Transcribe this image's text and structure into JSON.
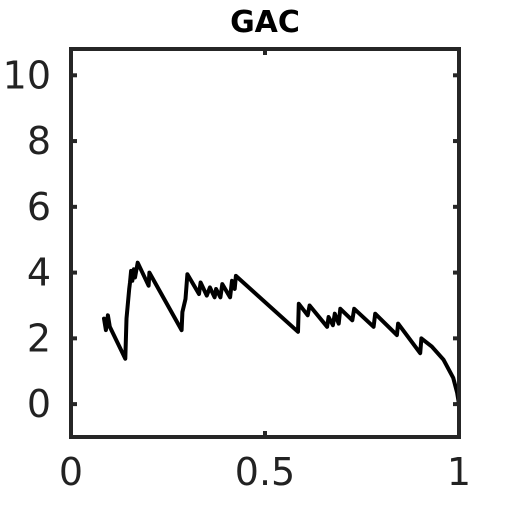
{
  "chart_data": {
    "type": "line",
    "title": "GAC",
    "xlabel": "",
    "ylabel": "",
    "xlim": [
      0,
      1
    ],
    "ylim": [
      -1,
      10.8
    ],
    "x_ticks": [
      0,
      0.5,
      1
    ],
    "x_tick_labels": [
      "0",
      "0.5",
      "1"
    ],
    "y_ticks": [
      0,
      2,
      4,
      6,
      8,
      10
    ],
    "y_tick_labels": [
      "0",
      "2",
      "4",
      "6",
      "8",
      "10"
    ],
    "grid": false,
    "box": true,
    "series": [
      {
        "color": "#000000",
        "points": [
          [
            0.085,
            2.6
          ],
          [
            0.09,
            2.25
          ],
          [
            0.095,
            2.7
          ],
          [
            0.1,
            2.35
          ],
          [
            0.14,
            1.38
          ],
          [
            0.143,
            2.6
          ],
          [
            0.15,
            3.5
          ],
          [
            0.152,
            3.7
          ],
          [
            0.155,
            4.05
          ],
          [
            0.158,
            3.75
          ],
          [
            0.162,
            4.1
          ],
          [
            0.165,
            3.85
          ],
          [
            0.172,
            4.3
          ],
          [
            0.2,
            3.6
          ],
          [
            0.202,
            4.0
          ],
          [
            0.285,
            2.25
          ],
          [
            0.287,
            2.8
          ],
          [
            0.295,
            3.2
          ],
          [
            0.3,
            3.95
          ],
          [
            0.33,
            3.35
          ],
          [
            0.334,
            3.7
          ],
          [
            0.35,
            3.3
          ],
          [
            0.358,
            3.55
          ],
          [
            0.37,
            3.25
          ],
          [
            0.374,
            3.5
          ],
          [
            0.385,
            3.25
          ],
          [
            0.39,
            3.65
          ],
          [
            0.41,
            3.25
          ],
          [
            0.415,
            3.75
          ],
          [
            0.422,
            3.5
          ],
          [
            0.425,
            3.9
          ],
          [
            0.585,
            2.2
          ],
          [
            0.587,
            3.05
          ],
          [
            0.61,
            2.7
          ],
          [
            0.615,
            3.0
          ],
          [
            0.66,
            2.35
          ],
          [
            0.664,
            2.65
          ],
          [
            0.675,
            2.4
          ],
          [
            0.68,
            2.75
          ],
          [
            0.69,
            2.45
          ],
          [
            0.694,
            2.9
          ],
          [
            0.725,
            2.55
          ],
          [
            0.73,
            2.9
          ],
          [
            0.78,
            2.35
          ],
          [
            0.784,
            2.75
          ],
          [
            0.84,
            2.1
          ],
          [
            0.843,
            2.45
          ],
          [
            0.9,
            1.55
          ],
          [
            0.903,
            2.0
          ],
          [
            0.93,
            1.75
          ],
          [
            0.96,
            1.35
          ],
          [
            0.985,
            0.8
          ],
          [
            0.995,
            0.35
          ],
          [
            1.0,
            0.0
          ]
        ]
      }
    ]
  }
}
